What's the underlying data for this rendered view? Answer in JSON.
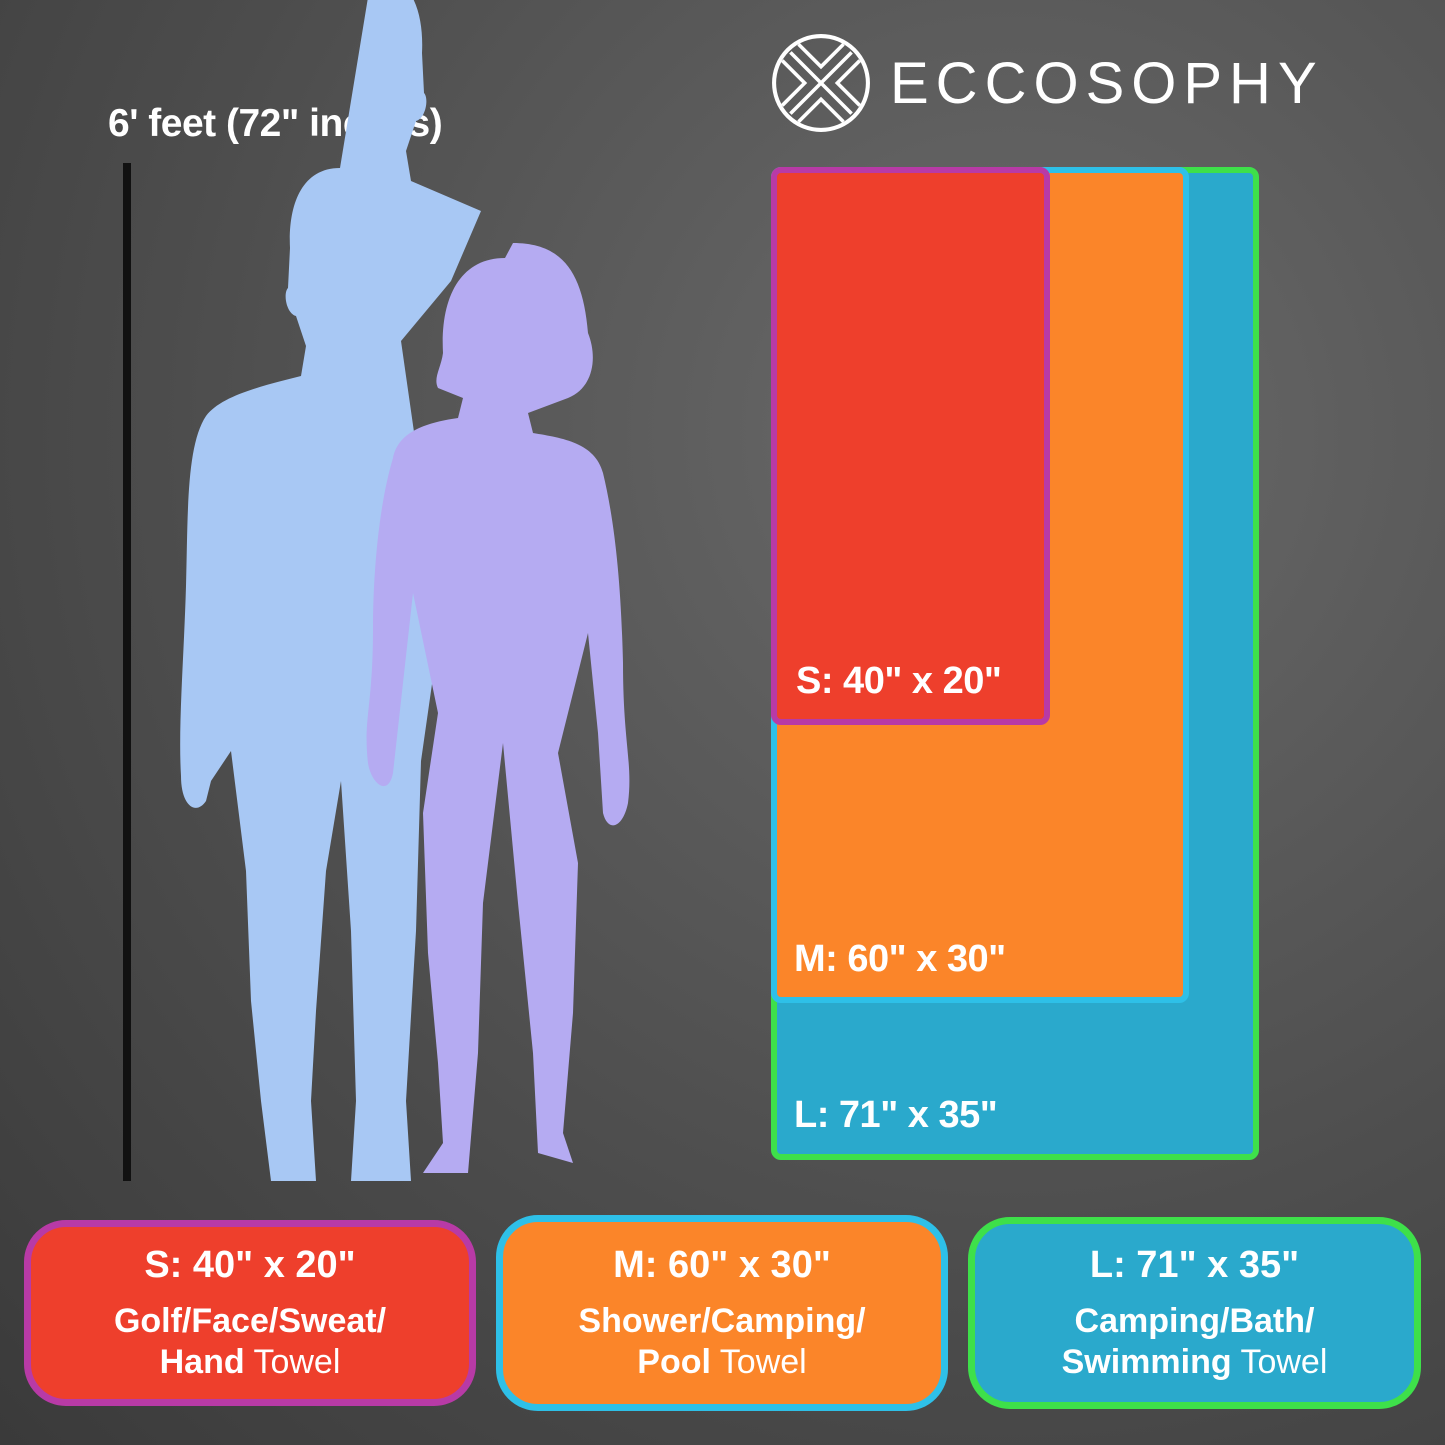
{
  "height_label": "6' feet (72\" inches)",
  "brand": {
    "name": "ECCOSOPHY",
    "logo_icon": "eccosophy-logo-icon"
  },
  "colors": {
    "small": "#ee3f2c",
    "small_border": "#b83aa6",
    "medium": "#fb8529",
    "medium_border": "#2ec0e8",
    "large": "#2aa9cc",
    "large_border": "#3ee04a",
    "man": "#a8c8f4",
    "woman": "#b5abf2"
  },
  "sizes": [
    {
      "label": "S: 40\" x 20\"",
      "uses": "Golf/Face/Sweat/",
      "last_bold": "Hand",
      "last": " Towel"
    },
    {
      "label": "M: 60\" x 30\"",
      "uses": "Shower/Camping/",
      "last_bold": "Pool",
      "last": " Towel"
    },
    {
      "label": "L: 71\" x 35\"",
      "uses": "Camping/Bath/",
      "last_bold": "Swimming",
      "last": " Towel"
    }
  ]
}
